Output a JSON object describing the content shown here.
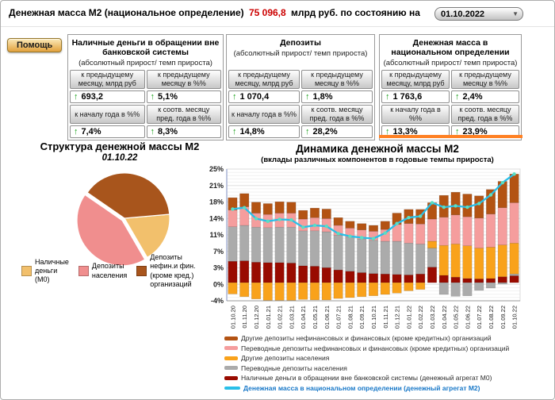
{
  "header": {
    "title": "Денежная масса М2 (национальное определение)",
    "value": "75 096,8",
    "suffix": "млрд руб. по состоянию на",
    "date": "01.10.2022"
  },
  "icons": {
    "up_arrow": "↑",
    "dropdown_arrow": "▼"
  },
  "help_button_label": "Помощь",
  "panels": [
    {
      "title": "Наличные деньги в обращении вне банковской системы",
      "subtitle": "(абсолютный прирост/ темп прироста)",
      "cells": [
        {
          "label": "к предыдущему месяцу, млрд руб",
          "value": "693,2"
        },
        {
          "label": "к предыдущему месяцу в %%",
          "value": "5,1%"
        },
        {
          "label": "к началу года в %%",
          "value": "7,4%"
        },
        {
          "label": "к соотв. месяцу пред. года в %%",
          "value": "8,3%"
        }
      ]
    },
    {
      "title": "Депозиты",
      "subtitle": "(абсолютный прирост/ темп прироста)",
      "cells": [
        {
          "label": "к предыдущему месяцу, млрд руб",
          "value": "1 070,4"
        },
        {
          "label": "к предыдущему месяцу в %%",
          "value": "1,8%"
        },
        {
          "label": "к началу года в %%",
          "value": "14,8%"
        },
        {
          "label": "к соотв. месяцу пред. года в %%",
          "value": "28,2%"
        }
      ]
    },
    {
      "title": "Денежная масса в национальном определении",
      "subtitle": "(абсолютный прирост/ темп прироста)",
      "cells": [
        {
          "label": "к предыдущему месяцу, млрд руб",
          "value": "1 763,6"
        },
        {
          "label": "к предыдущему месяцу в %%",
          "value": "2,4%"
        },
        {
          "label": "к началу года в %%",
          "value": "13,3%"
        },
        {
          "label": "к соотв. месяцу пред. года в %%",
          "value": "23,9%"
        }
      ]
    }
  ],
  "chart_data": [
    {
      "type": "pie",
      "title": "Структура денежной массы М2",
      "subtitle": "01.10.22",
      "labels": [
        "Наличные\nденьги\n(М0)",
        "Депозиты\nнаселения",
        "Депозиты\nнефин.и фин.\n(кроме кред.)\nорганизаций"
      ],
      "values": [
        18,
        43,
        39
      ],
      "colors": [
        "#F2C06C",
        "#F08E8E",
        "#A8551C"
      ],
      "start_angle_deg": -5,
      "explode_index": 1
    },
    {
      "type": "bar",
      "stacked": true,
      "title": "Динамика денежной массы М2",
      "subtitle": "(вклады различных компонентов в годовые темпы прироста)",
      "ylim": [
        -4,
        25
      ],
      "yticks": [
        {
          "v": 25,
          "label": "25%"
        },
        {
          "v": 21.375,
          "label": "21%"
        },
        {
          "v": 17.75,
          "label": "18%"
        },
        {
          "v": 14.125,
          "label": "14%"
        },
        {
          "v": 10.5,
          "label": "11%"
        },
        {
          "v": 6.875,
          "label": "7%"
        },
        {
          "v": 3.25,
          "label": "3%"
        },
        {
          "v": -0.375,
          "label": "0%"
        },
        {
          "v": -4,
          "label": "-4%"
        }
      ],
      "categories": [
        "01.10.20",
        "01.11.20",
        "01.12.20",
        "01.01.21",
        "01.02.21",
        "01.03.21",
        "01.04.21",
        "01.05.21",
        "01.06.21",
        "01.07.21",
        "01.08.21",
        "01.09.21",
        "01.10.21",
        "01.11.21",
        "01.12.21",
        "01.01.22",
        "01.02.22",
        "01.03.22",
        "01.04.22",
        "01.05.22",
        "01.06.22",
        "01.07.22",
        "01.08.22",
        "01.09.22",
        "01.10.22"
      ],
      "series": [
        {
          "key": "m0",
          "name": "Наличные деньги в обращении вне банковской системы (денежный агрегат М0)",
          "color": "#990B00",
          "values": [
            4.7,
            4.8,
            4.5,
            4.4,
            4.4,
            4.3,
            3.7,
            3.6,
            3.3,
            2.8,
            2.5,
            2.2,
            2.0,
            1.9,
            1.8,
            1.7,
            1.9,
            3.4,
            1.6,
            1.2,
            0.9,
            0.8,
            0.9,
            1.3,
            1.5
          ]
        },
        {
          "key": "perevodnye-naseleniya",
          "name": "Переводные депозиты населения",
          "color": "#ABABAB",
          "values": [
            7.6,
            7.8,
            7.7,
            7.7,
            7.8,
            7.9,
            7.7,
            7.8,
            7.9,
            7.6,
            7.5,
            7.4,
            7.3,
            7.2,
            7.3,
            7.0,
            6.6,
            4.2,
            -2.6,
            -3.0,
            -2.9,
            -1.7,
            -1.2,
            -0.3,
            0.4
          ]
        },
        {
          "key": "drugie-naseleniya",
          "name": "Другие депозиты населения",
          "color": "#F9A21B",
          "values": [
            -2.5,
            -3.1,
            -3.6,
            -3.9,
            -3.9,
            -3.9,
            -3.7,
            -3.8,
            -3.8,
            -3.5,
            -3.3,
            -3.1,
            -2.9,
            -2.6,
            -2.3,
            -1.8,
            -1.5,
            1.5,
            6.6,
            7.3,
            7.2,
            6.8,
            6.9,
            7.0,
            6.8
          ]
        },
        {
          "key": "perevodnye-org",
          "name": "Переводные депозиты нефинансовых и финансовых (кроме кредитных) организаций",
          "color": "#F59D9D",
          "values": [
            3.7,
            4.1,
            3.1,
            2.9,
            3.1,
            3.1,
            2.6,
            2.9,
            2.9,
            2.2,
            2.0,
            2.0,
            2.0,
            2.6,
            3.7,
            4.3,
            4.4,
            4.9,
            6.2,
            6.4,
            6.4,
            6.6,
            7.3,
            8.2,
            8.9
          ]
        },
        {
          "key": "drugie-org",
          "name": "Другие депозиты нефинансовых и финансовых (кроме кредитных) организаций",
          "color": "#B35313",
          "values": [
            2.7,
            2.9,
            2.4,
            2.4,
            2.5,
            2.4,
            1.9,
            2.1,
            2.1,
            1.7,
            1.5,
            1.4,
            1.3,
            1.8,
            2.5,
            3.1,
            3.2,
            3.6,
            4.8,
            5.0,
            5.0,
            4.9,
            5.4,
            5.8,
            6.3
          ]
        }
      ],
      "line": {
        "name": "Денежная масса в национальном определении (денежный агрегат М2)",
        "color": "#29BFE8",
        "marker_color": "#59DFC3",
        "values": [
          16.2,
          16.5,
          14.1,
          13.5,
          13.9,
          13.8,
          12.2,
          12.6,
          12.4,
          10.8,
          10.2,
          9.9,
          9.7,
          10.9,
          13.0,
          14.3,
          14.6,
          17.6,
          16.6,
          16.9,
          16.6,
          17.4,
          19.3,
          22.0,
          23.9
        ]
      },
      "legend": [
        {
          "label": "Другие депозиты нефинансовых и финансовых (кроме кредитных)  организаций",
          "color": "#B35313",
          "type": "bar"
        },
        {
          "label": "Переводные депозиты нефинансовых и финансовых (кроме кредитных)  организаций",
          "color": "#F59D9D",
          "type": "bar"
        },
        {
          "label": "Другие депозиты населения",
          "color": "#F9A21B",
          "type": "bar"
        },
        {
          "label": "Переводные депозиты населения",
          "color": "#ABABAB",
          "type": "bar"
        },
        {
          "label": "Наличные деньги в обращении вне банковской системы (денежный агрегат М0)",
          "color": "#990B00",
          "type": "bar"
        },
        {
          "label": "Денежная масса в национальном  определении  (денежный агрегат М2)",
          "color": "#29BFE8",
          "type": "line"
        }
      ],
      "colors": {
        "accent_orange": "#FF8124",
        "value_red": "#CC0000",
        "arrow_green": "#18A018"
      }
    }
  ]
}
